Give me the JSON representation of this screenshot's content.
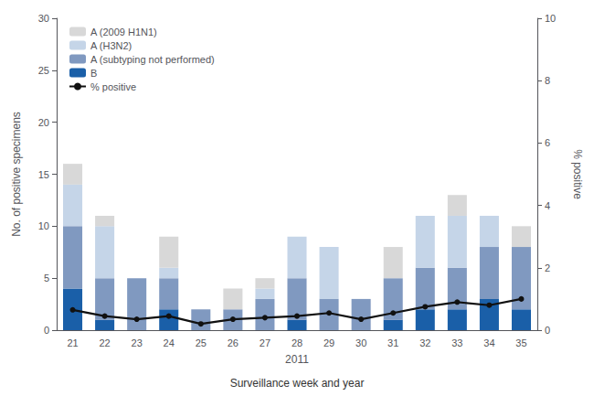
{
  "chart_data": {
    "type": "bar",
    "stacked": true,
    "categories": [
      "21",
      "22",
      "23",
      "24",
      "25",
      "26",
      "27",
      "28",
      "29",
      "30",
      "31",
      "32",
      "33",
      "34",
      "35"
    ],
    "series": [
      {
        "name": "B",
        "type": "bar",
        "color": "#1a5fa8",
        "values": [
          4,
          1,
          0,
          2,
          0,
          0,
          0,
          1,
          0,
          0,
          1,
          2,
          2,
          3,
          2
        ]
      },
      {
        "name": "A (subtyping not performed)",
        "type": "bar",
        "color": "#8099c0",
        "values": [
          6,
          4,
          5,
          3,
          2,
          2,
          3,
          4,
          3,
          3,
          4,
          4,
          4,
          5,
          6
        ]
      },
      {
        "name": "A (H3N2)",
        "type": "bar",
        "color": "#c5d5e8",
        "values": [
          4,
          5,
          0,
          1,
          0,
          0,
          1,
          4,
          5,
          0,
          0,
          5,
          5,
          3,
          0
        ]
      },
      {
        "name": "A (2009 H1N1)",
        "type": "bar",
        "color": "#d8d8d8",
        "values": [
          2,
          1,
          0,
          3,
          0,
          2,
          1,
          0,
          0,
          0,
          3,
          0,
          2,
          0,
          2
        ]
      },
      {
        "name": "% positive",
        "type": "line",
        "axis": "y2",
        "color": "#111111",
        "marker": "circle",
        "values": [
          0.65,
          0.45,
          0.35,
          0.45,
          0.2,
          0.35,
          0.4,
          0.45,
          0.55,
          0.35,
          0.55,
          0.75,
          0.9,
          0.8,
          1.0
        ]
      }
    ],
    "xlabel": "2011",
    "ylabel": "No. of positive specimens",
    "y2label": "% positive",
    "annotations": [
      "Surveillance week and year"
    ],
    "ylim": [
      0,
      30
    ],
    "yticks": [
      0,
      5,
      10,
      15,
      20,
      25,
      30
    ],
    "y2lim": [
      0,
      10
    ],
    "y2ticks": [
      0,
      2,
      4,
      6,
      8,
      10
    ],
    "grid": false,
    "legend": "upper left"
  }
}
